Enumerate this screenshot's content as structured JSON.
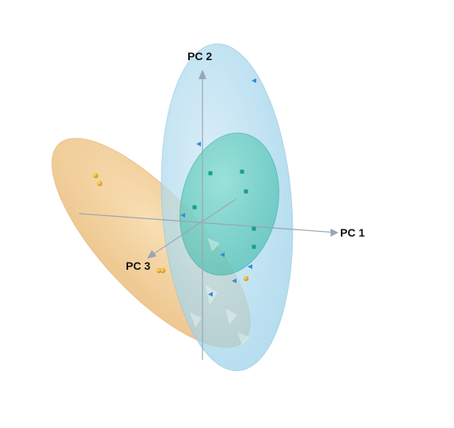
{
  "chart_data": {
    "type": "scatter",
    "subtype": "3d-pca-scatter-with-confidence-ellipsoids",
    "title": "",
    "axes": {
      "x": {
        "label": "PC 1"
      },
      "y": {
        "label": "PC 2"
      },
      "z": {
        "label": "PC 3"
      }
    },
    "grid": false,
    "legend": "none",
    "groups": [
      {
        "color": "#f0b400",
        "ellipsoid_color": "#f2c888",
        "marker": "sphere",
        "points": [
          {
            "x": -1.35,
            "y": 0.55,
            "z": 0.0
          },
          {
            "x": -1.3,
            "y": 0.45,
            "z": 0.0
          },
          {
            "x": -0.55,
            "y": -0.65,
            "z": 0.0
          },
          {
            "x": -0.5,
            "y": -0.65,
            "z": 0.0
          },
          {
            "x": 0.55,
            "y": -0.75,
            "z": 0.0
          }
        ]
      },
      {
        "color": "#1a9c8e",
        "ellipsoid_color": "#3cc4b0",
        "marker": "cube",
        "points": [
          {
            "x": 0.1,
            "y": 0.58,
            "z": 0.0
          },
          {
            "x": 0.5,
            "y": 0.6,
            "z": 0.0
          },
          {
            "x": 0.55,
            "y": 0.35,
            "z": 0.0
          },
          {
            "x": -0.1,
            "y": 0.15,
            "z": 0.0
          },
          {
            "x": 0.65,
            "y": -0.12,
            "z": 0.0
          },
          {
            "x": 0.65,
            "y": -0.35,
            "z": 0.0
          }
        ]
      },
      {
        "color": "#2f8fd8",
        "ellipsoid_color": "#a9d6ee",
        "marker": "triangle",
        "points": [
          {
            "x": 0.65,
            "y": 1.75,
            "z": 0.0
          },
          {
            "x": -0.05,
            "y": 0.95,
            "z": 0.0
          },
          {
            "x": -0.25,
            "y": 0.05,
            "z": 0.0
          },
          {
            "x": 0.25,
            "y": -0.45,
            "z": 0.0
          },
          {
            "x": 0.6,
            "y": -0.6,
            "z": 0.0
          },
          {
            "x": 0.4,
            "y": -0.78,
            "z": 0.0
          },
          {
            "x": 0.1,
            "y": -0.95,
            "z": 0.0
          }
        ]
      }
    ]
  }
}
